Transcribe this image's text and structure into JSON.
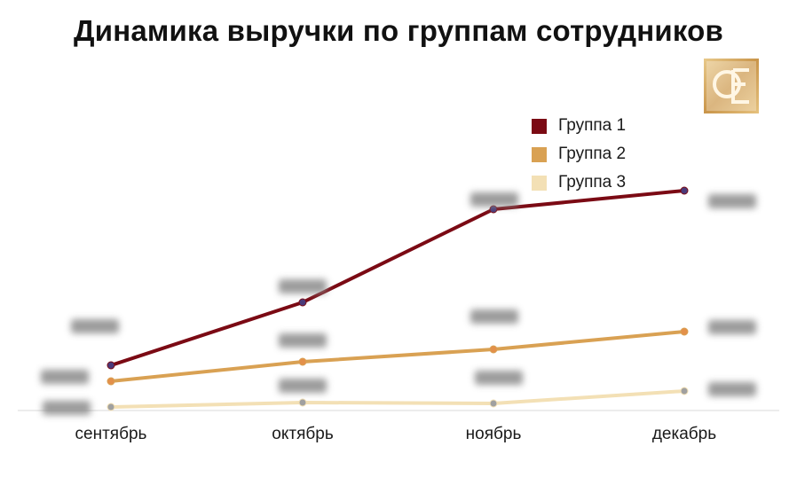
{
  "chart_data": {
    "type": "line",
    "title": "Динамика выручки по группам сотрудников",
    "categories": [
      "сентябрь",
      "октябрь",
      "ноябрь",
      "декабрь"
    ],
    "ylim": [
      0,
      300
    ],
    "grid": false,
    "legend_position": "top-right",
    "series": [
      {
        "name": "Группа 1",
        "color": "#7b0a14",
        "values": [
          63,
          134,
          239,
          260
        ]
      },
      {
        "name": "Группа 2",
        "color": "#d9a153",
        "values": [
          45,
          67,
          81,
          101
        ]
      },
      {
        "name": "Группа 3",
        "color": "#f3e0b5",
        "values": [
          16,
          21,
          20,
          34
        ]
      }
    ]
  },
  "logo": {
    "icon": "ol-monogram-logo",
    "color": "#d3a95c"
  }
}
